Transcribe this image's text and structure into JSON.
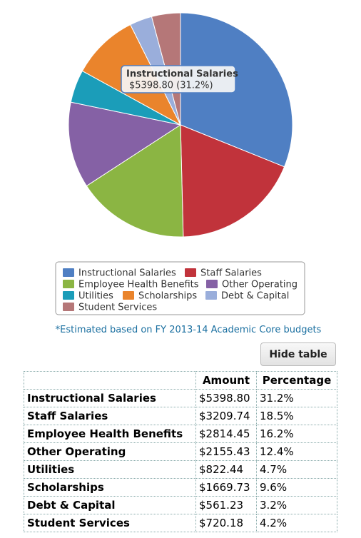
{
  "chart_data": {
    "type": "pie",
    "categories": [
      "Instructional Salaries",
      "Staff Salaries",
      "Employee Health Benefits",
      "Other Operating",
      "Utilities",
      "Scholarships",
      "Debt & Capital",
      "Student Services"
    ],
    "values": [
      5398.8,
      3209.74,
      2814.45,
      2155.43,
      822.44,
      1669.73,
      561.23,
      720.18
    ],
    "colors": [
      "#4f7fc3",
      "#c1333b",
      "#8bb543",
      "#8561a5",
      "#1b9db9",
      "#ea842c",
      "#9aaedb",
      "#b57778"
    ],
    "tooltip": {
      "title": "Instructional Salaries",
      "text": "$5398.80 (31.2%)"
    },
    "note": "*Estimated based on FY 2013-14 Academic Core budgets"
  },
  "button": "Hide table",
  "table": {
    "header": [
      "Amount",
      "Percentage"
    ],
    "rows": [
      [
        "Instructional Salaries",
        "$5398.80",
        "31.2%"
      ],
      [
        "Staff Salaries",
        "$3209.74",
        "18.5%"
      ],
      [
        "Employee Health Benefits",
        "$2814.45",
        "16.2%"
      ],
      [
        "Other Operating",
        "$2155.43",
        "12.4%"
      ],
      [
        "Utilities",
        "$822.44",
        "4.7%"
      ],
      [
        "Scholarships",
        "$1669.73",
        "9.6%"
      ],
      [
        "Debt & Capital",
        "$561.23",
        "3.2%"
      ],
      [
        "Student Services",
        "$720.18",
        "4.2%"
      ]
    ]
  }
}
